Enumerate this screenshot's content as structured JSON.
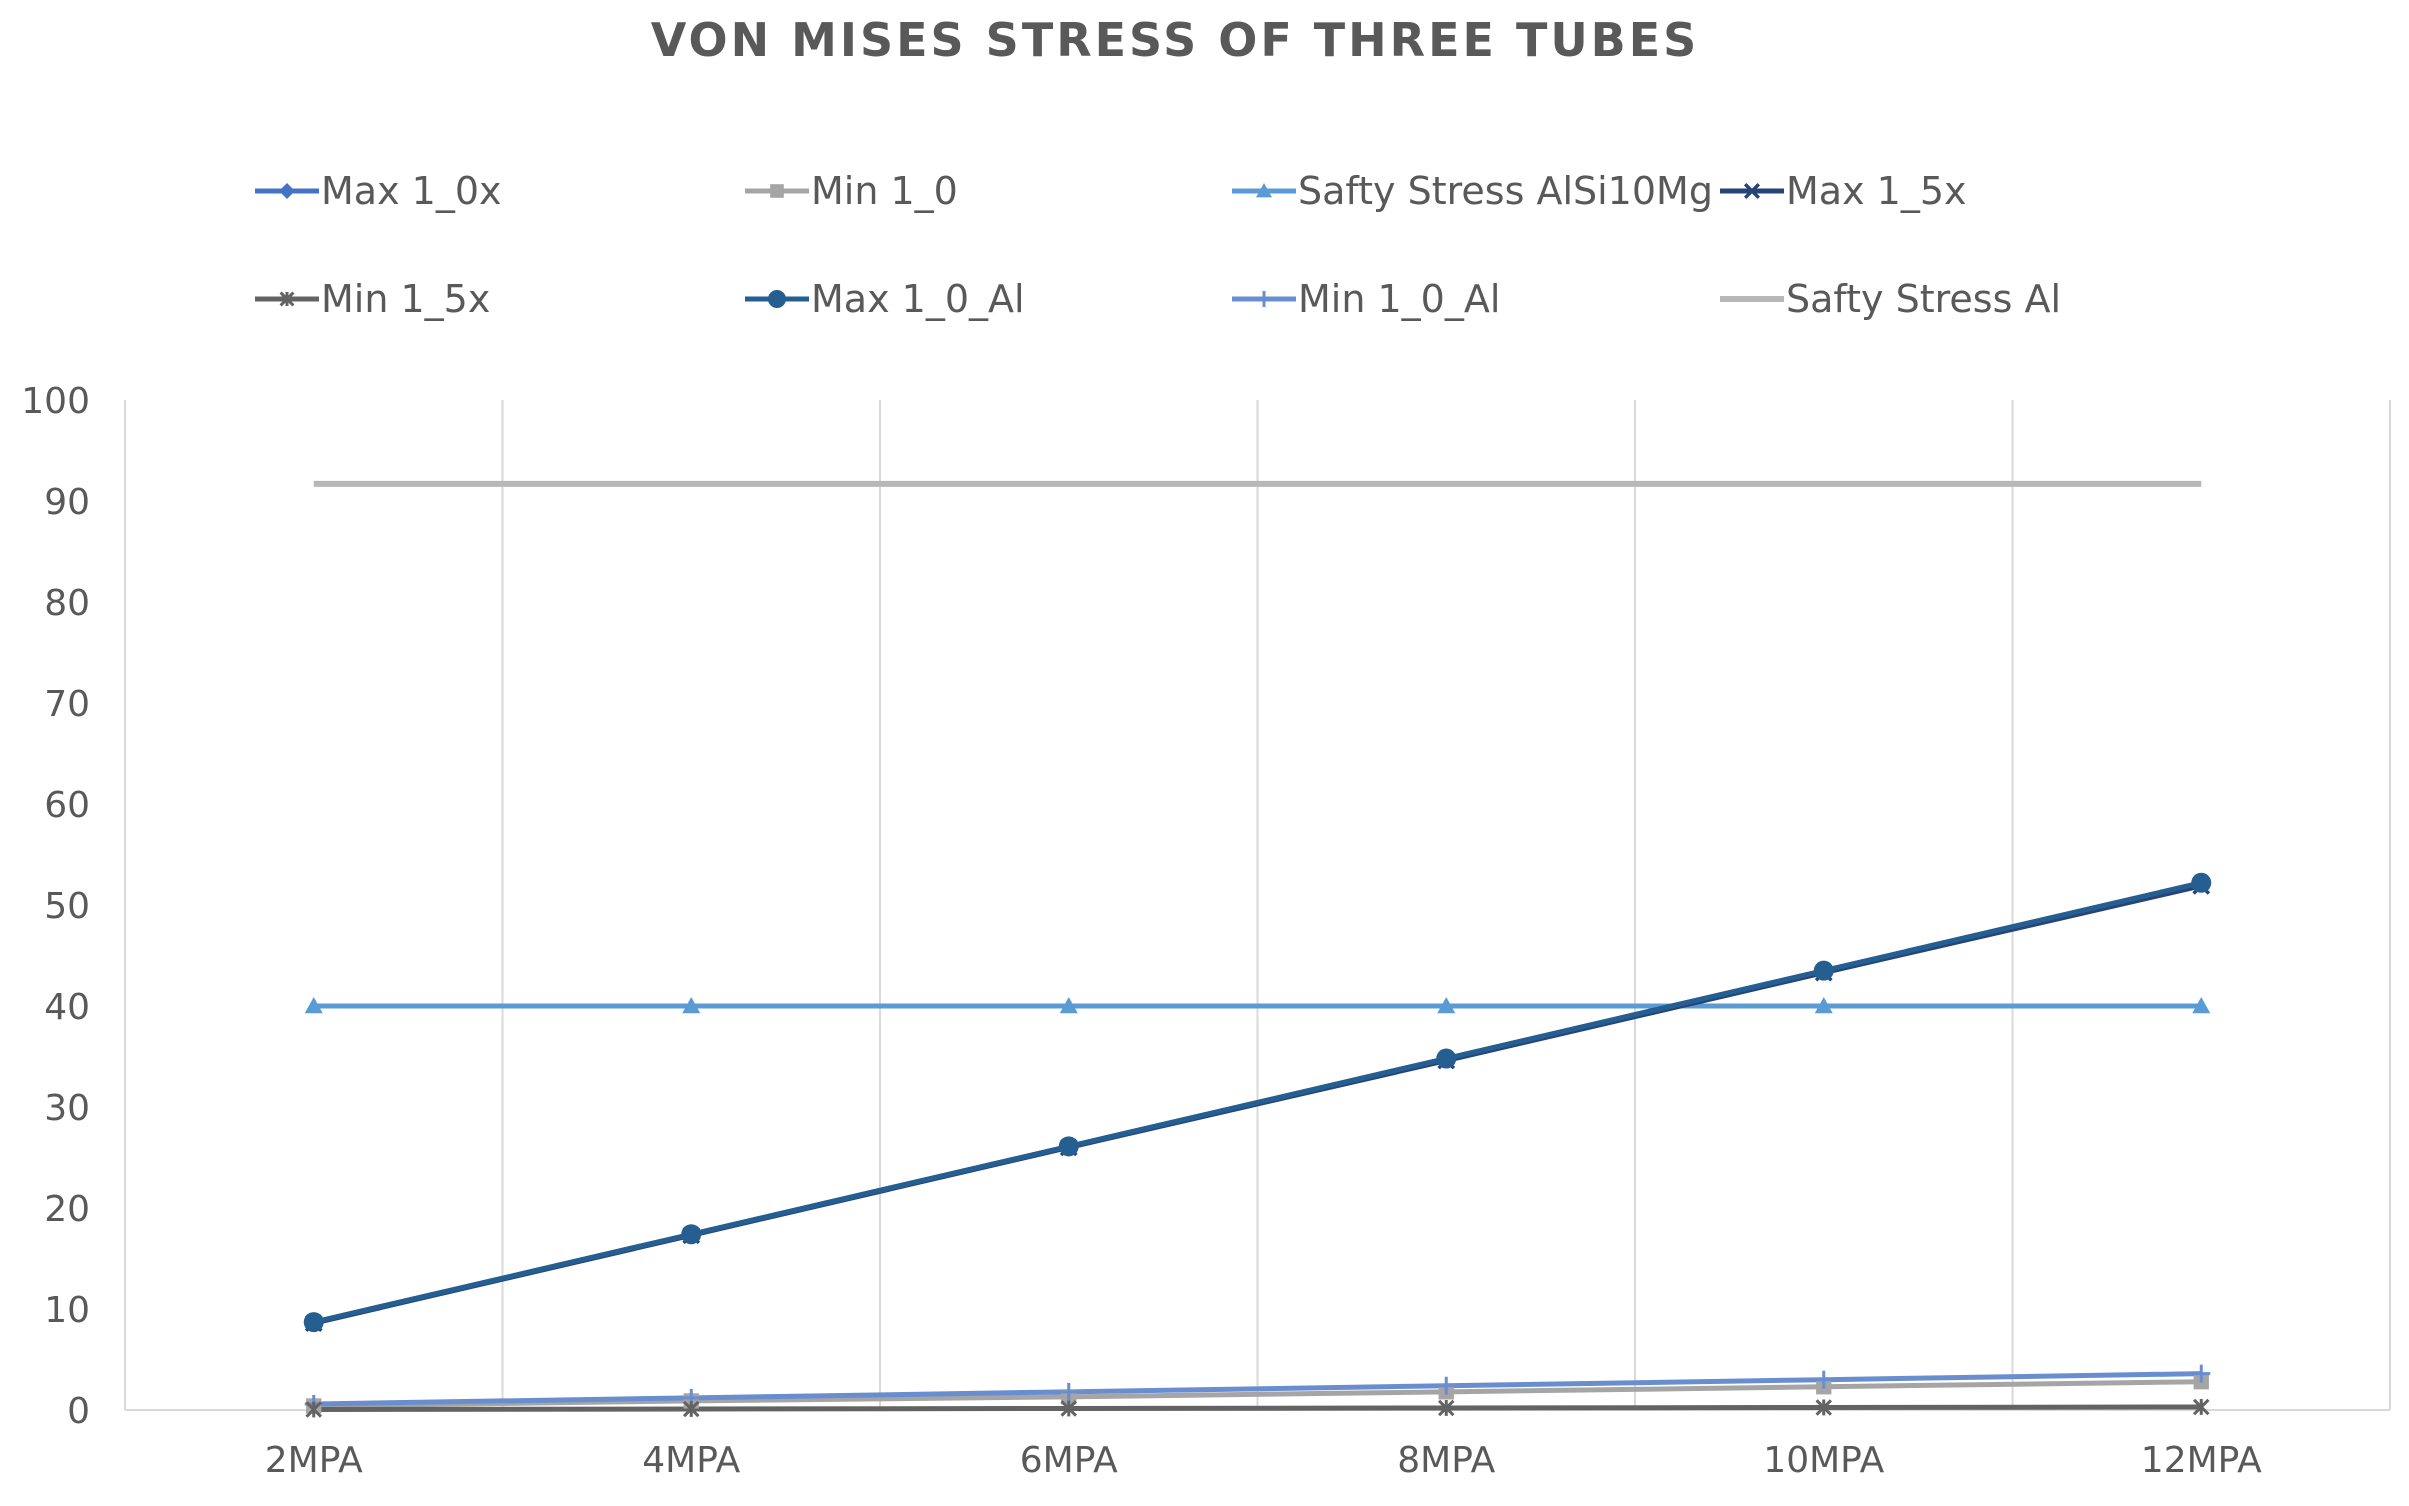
{
  "chart_data": {
    "type": "line",
    "title": "VON MISES STRESS OF THREE TUBES",
    "xlabel": "",
    "ylabel": "",
    "categories": [
      "2MPA",
      "4MPA",
      "6MPA",
      "8MPA",
      "10MPA",
      "12MPA"
    ],
    "ylim": [
      0,
      100
    ],
    "yticks": [
      0,
      10,
      20,
      30,
      40,
      50,
      60,
      70,
      80,
      90,
      100
    ],
    "grid": "vertical",
    "legend_position": "top",
    "series": [
      {
        "name": "Max 1_0x",
        "values": [
          8.7,
          17.4,
          26.1,
          34.8,
          43.5,
          52.2
        ],
        "color": "#4472C4",
        "marker": "diamond"
      },
      {
        "name": "Min 1_0",
        "values": [
          0.4,
          0.9,
          1.3,
          1.8,
          2.3,
          2.8
        ],
        "color": "#A5A5A5",
        "marker": "square"
      },
      {
        "name": "Safty Stress AlSi10Mg",
        "values": [
          40,
          40,
          40,
          40,
          40,
          40
        ],
        "color": "#5B9BD5",
        "marker": "triangle"
      },
      {
        "name": "Max 1_5x",
        "values": [
          8.6,
          17.3,
          26.0,
          34.6,
          43.3,
          51.9
        ],
        "color": "#264478",
        "marker": "x"
      },
      {
        "name": "Min 1_5x",
        "values": [
          0.05,
          0.1,
          0.15,
          0.2,
          0.25,
          0.3
        ],
        "color": "#636363",
        "marker": "star"
      },
      {
        "name": "Max 1_0_Al",
        "values": [
          8.7,
          17.4,
          26.1,
          34.8,
          43.5,
          52.2
        ],
        "color": "#255E91",
        "marker": "circle"
      },
      {
        "name": "Min 1_0_Al",
        "values": [
          0.6,
          1.2,
          1.8,
          2.4,
          3.0,
          3.6
        ],
        "color": "#698ED0",
        "marker": "plus"
      },
      {
        "name": "Safty Stress Al",
        "values": [
          91.7,
          91.7,
          91.7,
          91.7,
          91.7,
          91.7
        ],
        "color": "#B7B7B7",
        "marker": "none"
      }
    ]
  }
}
